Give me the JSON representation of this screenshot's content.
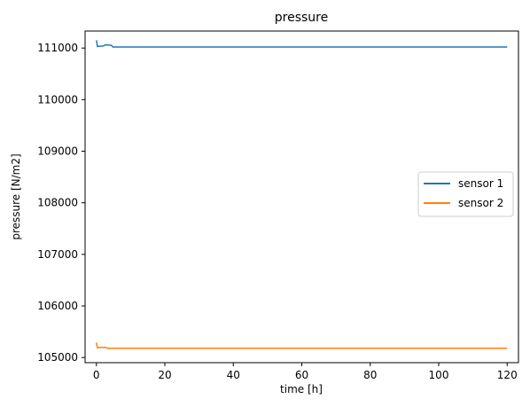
{
  "chart_data": {
    "type": "line",
    "title": "pressure",
    "xlabel": "time [h]",
    "ylabel": "pressure [N/m2]",
    "xlim": [
      -3.3,
      123.3
    ],
    "ylim": [
      104900,
      111330
    ],
    "xticks": [
      0,
      20,
      40,
      60,
      80,
      100,
      120
    ],
    "xtick_labels": [
      "0",
      "20",
      "40",
      "60",
      "80",
      "100",
      "120"
    ],
    "yticks": [
      105000,
      106000,
      107000,
      108000,
      109000,
      110000,
      111000
    ],
    "ytick_labels": [
      "105000",
      "106000",
      "107000",
      "108000",
      "109000",
      "110000",
      "111000"
    ],
    "grid": false,
    "legend_position": "center-right",
    "series": [
      {
        "name": "sensor 1",
        "color": "#1f77b4",
        "x": [
          0,
          0.1,
          0.3,
          1.0,
          2.0,
          2.5,
          3.5,
          4.5,
          4.8,
          5.2,
          6.0,
          10,
          20,
          40,
          60,
          80,
          100,
          120
        ],
        "y": [
          111150,
          111120,
          111030,
          111035,
          111040,
          111060,
          111060,
          111050,
          111020,
          111020,
          111020,
          111020,
          111020,
          111020,
          111020,
          111020,
          111020,
          111020
        ]
      },
      {
        "name": "sensor 2",
        "color": "#ff7f0e",
        "x": [
          0,
          0.1,
          0.3,
          1.0,
          2.0,
          2.5,
          3.0,
          3.5,
          5.0,
          10,
          20,
          40,
          60,
          80,
          100,
          120
        ],
        "y": [
          105290,
          105250,
          105190,
          105195,
          105195,
          105200,
          105185,
          105180,
          105180,
          105180,
          105180,
          105180,
          105180,
          105180,
          105180,
          105180
        ]
      }
    ]
  }
}
